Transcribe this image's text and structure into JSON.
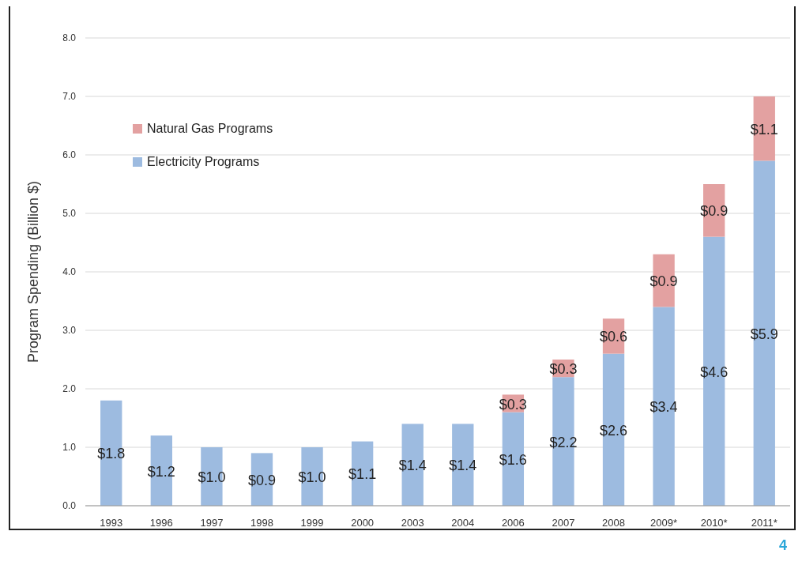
{
  "chart_data": {
    "type": "bar",
    "stacked": true,
    "ylabel": "Program Spending (Billion $)",
    "categories": [
      "1993",
      "1996",
      "1997",
      "1998",
      "1999",
      "2000",
      "2003",
      "2004",
      "2006",
      "2007",
      "2008",
      "2009*",
      "2010*",
      "2011*"
    ],
    "series": [
      {
        "name": "Electricity Programs",
        "color": "#9dbbe0",
        "values": [
          1.8,
          1.2,
          1.0,
          0.9,
          1.0,
          1.1,
          1.4,
          1.4,
          1.6,
          2.2,
          2.6,
          3.4,
          4.6,
          5.9
        ],
        "value_labels": [
          "$1.8",
          "$1.2",
          "$1.0",
          "$0.9",
          "$1.0",
          "$1.1",
          "$1.4",
          "$1.4",
          "$1.6",
          "$2.2",
          "$2.6",
          "$3.4",
          "$4.6",
          "$5.9"
        ]
      },
      {
        "name": "Natural Gas Programs",
        "color": "#e3a1a1",
        "values": [
          null,
          null,
          null,
          null,
          null,
          null,
          null,
          null,
          0.3,
          0.3,
          0.6,
          0.9,
          0.9,
          1.1
        ],
        "value_labels": [
          null,
          null,
          null,
          null,
          null,
          null,
          null,
          null,
          "$0.3",
          "$0.3",
          "$0.6",
          "$0.9",
          "$0.9",
          "$1.1"
        ]
      }
    ],
    "ylim": [
      0,
      8
    ],
    "yticks": [
      {
        "value": 0,
        "label": "0.0"
      },
      {
        "value": 1,
        "label": "1.0"
      },
      {
        "value": 2,
        "label": "2.0"
      },
      {
        "value": 3,
        "label": "3.0"
      },
      {
        "value": 4,
        "label": "4.0"
      },
      {
        "value": 5,
        "label": "5.0"
      },
      {
        "value": 6,
        "label": "6.0"
      },
      {
        "value": 7,
        "label": "7.0"
      },
      {
        "value": 8,
        "label": "8.0"
      }
    ],
    "grid": "y",
    "legend": "top left",
    "annotations": [
      "4"
    ]
  }
}
